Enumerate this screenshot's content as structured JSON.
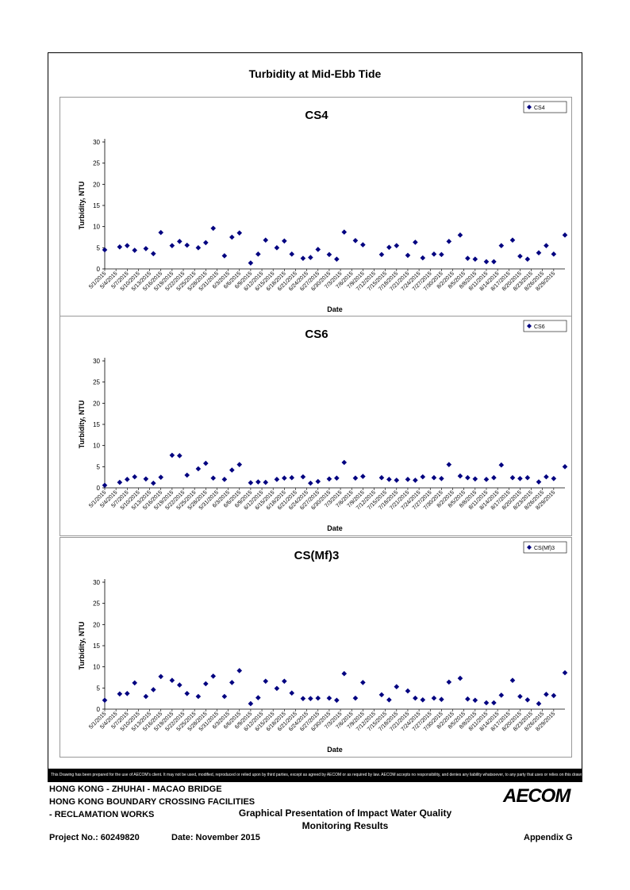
{
  "page_title": "Turbidity at Mid-Ebb Tide",
  "disclaimer": "This Drawing has been prepared for the use of AECOM's client. It may not be used, modified, reproduced or relied upon by third parties, except as agreed by AECOM or as required by law. AECOM accepts no responsibility, and denies any liability whatsoever, to any party that uses or relies on this drawing without AECOM's express written consent.",
  "footer": {
    "line1": "HONG KONG - ZHUHAI - MACAO BRIDGE",
    "line2": "HONG KONG BOUNDARY CROSSING FACILITIES",
    "line3": "- RECLAMATION WORKS",
    "logo": "AECOM",
    "center1": "Graphical Presentation of Impact Water Quality",
    "center2": "Monitoring Results",
    "project": "Project No.: 60249820",
    "date": "Date: November 2015",
    "appendix": "Appendix G"
  },
  "colors": {
    "marker": "#000080",
    "axis": "#000000",
    "frame": "#000000"
  },
  "chart_data": [
    {
      "type": "scatter",
      "title": "CS4",
      "xlabel": "Date",
      "ylabel": "Turbidity, NTU",
      "legend": "top-right",
      "series": [
        {
          "name": "CS4",
          "marker": "diamond",
          "points": [
            [
              "5/1/2015",
              4.5
            ],
            [
              "5/5/2015",
              5.2
            ],
            [
              "5/7/2015",
              5.5
            ],
            [
              "5/9/2015",
              4.4
            ],
            [
              "5/12/2015",
              4.8
            ],
            [
              "5/14/2015",
              3.6
            ],
            [
              "5/16/2015",
              8.6
            ],
            [
              "5/19/2015",
              5.5
            ],
            [
              "5/21/2015",
              6.5
            ],
            [
              "5/23/2015",
              5.6
            ],
            [
              "5/26/2015",
              5
            ],
            [
              "5/28/2015",
              6.2
            ],
            [
              "5/30/2015",
              9.6
            ],
            [
              "6/2/2015",
              3.1
            ],
            [
              "6/4/2015",
              7.5
            ],
            [
              "6/6/2015",
              8.5
            ],
            [
              "6/9/2015",
              1.4
            ],
            [
              "6/11/2015",
              3.5
            ],
            [
              "6/13/2015",
              6.8
            ],
            [
              "6/16/2015",
              5
            ],
            [
              "6/18/2015",
              6.6
            ],
            [
              "6/20/2015",
              3.5
            ],
            [
              "6/23/2015",
              2.5
            ],
            [
              "6/25/2015",
              2.7
            ],
            [
              "6/27/2015",
              4.6
            ],
            [
              "6/30/2015",
              3.4
            ],
            [
              "7/2/2015",
              2.3
            ],
            [
              "7/4/2015",
              8.7
            ],
            [
              "7/7/2015",
              6.7
            ],
            [
              "7/9/2015",
              5.7
            ],
            [
              "7/14/2015",
              3.4
            ],
            [
              "7/16/2015",
              5.1
            ],
            [
              "7/18/2015",
              5.5
            ],
            [
              "7/21/2015",
              3.2
            ],
            [
              "7/23/2015",
              6.3
            ],
            [
              "7/25/2015",
              2.6
            ],
            [
              "7/28/2015",
              3.5
            ],
            [
              "7/30/2015",
              3.4
            ],
            [
              "8/1/2015",
              6.5
            ],
            [
              "8/4/2015",
              8
            ],
            [
              "8/6/2015",
              2.5
            ],
            [
              "8/8/2015",
              2.3
            ],
            [
              "8/11/2015",
              1.7
            ],
            [
              "8/13/2015",
              1.7
            ],
            [
              "8/15/2015",
              5.5
            ],
            [
              "8/18/2015",
              6.8
            ],
            [
              "8/20/2015",
              3
            ],
            [
              "8/22/2015",
              2.3
            ],
            [
              "8/25/2015",
              3.8
            ],
            [
              "8/27/2015",
              5.5
            ],
            [
              "8/29/2015",
              3.5
            ],
            [
              "9/1/2015",
              8
            ]
          ]
        }
      ],
      "xticks": [
        "5/1/2015",
        "5/4/2015",
        "5/7/2015",
        "5/10/2015",
        "5/13/2015",
        "5/16/2015",
        "5/19/2015",
        "5/22/2015",
        "5/25/2015",
        "5/28/2015",
        "5/31/2015",
        "6/3/2015",
        "6/6/2015",
        "6/9/2015",
        "6/12/2015",
        "6/15/2015",
        "6/18/2015",
        "6/21/2015",
        "6/24/2015",
        "6/27/2015",
        "6/30/2015",
        "7/3/2015",
        "7/6/2015",
        "7/9/2015",
        "7/12/2015",
        "7/15/2015",
        "7/18/2015",
        "7/21/2015",
        "7/24/2015",
        "7/27/2015",
        "7/30/2015",
        "8/2/2015",
        "8/5/2015",
        "8/8/2015",
        "8/11/2015",
        "8/14/2015",
        "8/17/2015",
        "8/20/2015",
        "8/23/2015",
        "8/26/2015",
        "8/29/2015"
      ],
      "xlim": [
        "5/1/2015",
        "9/1/2015"
      ],
      "ylim": [
        0,
        30
      ],
      "yticks": [
        0,
        5,
        10,
        15,
        20,
        25,
        30
      ],
      "grid": false
    },
    {
      "type": "scatter",
      "title": "CS6",
      "xlabel": "Date",
      "ylabel": "Turbidity, NTU",
      "legend": "top-right",
      "series": [
        {
          "name": "CS6",
          "marker": "diamond",
          "points": [
            [
              "5/1/2015",
              0.6
            ],
            [
              "5/5/2015",
              1.3
            ],
            [
              "5/7/2015",
              2
            ],
            [
              "5/9/2015",
              2.6
            ],
            [
              "5/12/2015",
              2.1
            ],
            [
              "5/14/2015",
              1.1
            ],
            [
              "5/16/2015",
              2.5
            ],
            [
              "5/19/2015",
              7.7
            ],
            [
              "5/21/2015",
              7.6
            ],
            [
              "5/23/2015",
              3
            ],
            [
              "5/26/2015",
              4.5
            ],
            [
              "5/28/2015",
              5.8
            ],
            [
              "5/30/2015",
              2.3
            ],
            [
              "6/2/2015",
              2
            ],
            [
              "6/4/2015",
              4.2
            ],
            [
              "6/6/2015",
              5.5
            ],
            [
              "6/9/2015",
              1.2
            ],
            [
              "6/11/2015",
              1.4
            ],
            [
              "6/13/2015",
              1.3
            ],
            [
              "6/16/2015",
              2
            ],
            [
              "6/18/2015",
              2.3
            ],
            [
              "6/20/2015",
              2.4
            ],
            [
              "6/23/2015",
              2.6
            ],
            [
              "6/25/2015",
              1.1
            ],
            [
              "6/27/2015",
              1.5
            ],
            [
              "6/30/2015",
              2.1
            ],
            [
              "7/2/2015",
              2.3
            ],
            [
              "7/4/2015",
              6
            ],
            [
              "7/7/2015",
              2.3
            ],
            [
              "7/9/2015",
              2.7
            ],
            [
              "7/14/2015",
              2.4
            ],
            [
              "7/16/2015",
              2
            ],
            [
              "7/18/2015",
              1.8
            ],
            [
              "7/21/2015",
              2
            ],
            [
              "7/23/2015",
              1.8
            ],
            [
              "7/25/2015",
              2.6
            ],
            [
              "7/28/2015",
              2.4
            ],
            [
              "7/30/2015",
              2.2
            ],
            [
              "8/1/2015",
              5.5
            ],
            [
              "8/4/2015",
              2.8
            ],
            [
              "8/6/2015",
              2.4
            ],
            [
              "8/8/2015",
              2.1
            ],
            [
              "8/11/2015",
              2
            ],
            [
              "8/13/2015",
              2.4
            ],
            [
              "8/15/2015",
              5.4
            ],
            [
              "8/18/2015",
              2.4
            ],
            [
              "8/20/2015",
              2.2
            ],
            [
              "8/22/2015",
              2.4
            ],
            [
              "8/25/2015",
              1.4
            ],
            [
              "8/27/2015",
              2.6
            ],
            [
              "8/29/2015",
              2.2
            ],
            [
              "9/1/2015",
              5
            ]
          ]
        }
      ],
      "xticks": [
        "5/1/2015",
        "5/4/2015",
        "5/7/2015",
        "5/10/2015",
        "5/13/2015",
        "5/16/2015",
        "5/19/2015",
        "5/22/2015",
        "5/25/2015",
        "5/28/2015",
        "5/31/2015",
        "6/3/2015",
        "6/6/2015",
        "6/9/2015",
        "6/12/2015",
        "6/15/2015",
        "6/18/2015",
        "6/21/2015",
        "6/24/2015",
        "6/27/2015",
        "6/30/2015",
        "7/3/2015",
        "7/6/2015",
        "7/9/2015",
        "7/12/2015",
        "7/15/2015",
        "7/18/2015",
        "7/21/2015",
        "7/24/2015",
        "7/27/2015",
        "7/30/2015",
        "8/2/2015",
        "8/5/2015",
        "8/8/2015",
        "8/11/2015",
        "8/14/2015",
        "8/17/2015",
        "8/20/2015",
        "8/23/2015",
        "8/26/2015",
        "8/29/2015"
      ],
      "xlim": [
        "5/1/2015",
        "9/1/2015"
      ],
      "ylim": [
        0,
        30
      ],
      "yticks": [
        0,
        5,
        10,
        15,
        20,
        25,
        30
      ],
      "grid": false
    },
    {
      "type": "scatter",
      "title": "CS(Mf)3",
      "xlabel": "Date",
      "ylabel": "Turbidity, NTU",
      "legend": "top-right",
      "series": [
        {
          "name": "CS(Mf)3",
          "marker": "diamond",
          "points": [
            [
              "5/1/2015",
              2.1
            ],
            [
              "5/5/2015",
              3.6
            ],
            [
              "5/7/2015",
              3.7
            ],
            [
              "5/9/2015",
              6.2
            ],
            [
              "5/12/2015",
              3
            ],
            [
              "5/14/2015",
              4.6
            ],
            [
              "5/16/2015",
              7.7
            ],
            [
              "5/19/2015",
              6.8
            ],
            [
              "5/21/2015",
              5.7
            ],
            [
              "5/23/2015",
              3.7
            ],
            [
              "5/26/2015",
              3
            ],
            [
              "5/28/2015",
              6
            ],
            [
              "5/30/2015",
              7.8
            ],
            [
              "6/2/2015",
              3
            ],
            [
              "6/4/2015",
              6.3
            ],
            [
              "6/6/2015",
              9.1
            ],
            [
              "6/9/2015",
              1.3
            ],
            [
              "6/11/2015",
              2.7
            ],
            [
              "6/13/2015",
              6.6
            ],
            [
              "6/16/2015",
              4.9
            ],
            [
              "6/18/2015",
              6.6
            ],
            [
              "6/20/2015",
              3.8
            ],
            [
              "6/23/2015",
              2.5
            ],
            [
              "6/25/2015",
              2.5
            ],
            [
              "6/27/2015",
              2.6
            ],
            [
              "6/30/2015",
              2.6
            ],
            [
              "7/2/2015",
              2.1
            ],
            [
              "7/4/2015",
              8.4
            ],
            [
              "7/7/2015",
              2.6
            ],
            [
              "7/9/2015",
              6.3
            ],
            [
              "7/14/2015",
              3.4
            ],
            [
              "7/16/2015",
              2.2
            ],
            [
              "7/18/2015",
              5.3
            ],
            [
              "7/21/2015",
              4.3
            ],
            [
              "7/23/2015",
              2.6
            ],
            [
              "7/25/2015",
              2.2
            ],
            [
              "7/28/2015",
              2.6
            ],
            [
              "7/30/2015",
              2.3
            ],
            [
              "8/1/2015",
              6.4
            ],
            [
              "8/4/2015",
              7.3
            ],
            [
              "8/6/2015",
              2.4
            ],
            [
              "8/8/2015",
              2.1
            ],
            [
              "8/11/2015",
              1.5
            ],
            [
              "8/13/2015",
              1.5
            ],
            [
              "8/15/2015",
              3.3
            ],
            [
              "8/18/2015",
              6.8
            ],
            [
              "8/20/2015",
              3
            ],
            [
              "8/22/2015",
              2.2
            ],
            [
              "8/25/2015",
              1.3
            ],
            [
              "8/27/2015",
              3.5
            ],
            [
              "8/29/2015",
              3.2
            ],
            [
              "9/1/2015",
              8.6
            ]
          ]
        }
      ],
      "xticks": [
        "5/1/2015",
        "5/4/2015",
        "5/7/2015",
        "5/10/2015",
        "5/13/2015",
        "5/16/2015",
        "5/19/2015",
        "5/22/2015",
        "5/25/2015",
        "5/28/2015",
        "5/31/2015",
        "6/3/2015",
        "6/6/2015",
        "6/9/2015",
        "6/12/2015",
        "6/15/2015",
        "6/18/2015",
        "6/21/2015",
        "6/24/2015",
        "6/27/2015",
        "6/30/2015",
        "7/3/2015",
        "7/6/2015",
        "7/9/2015",
        "7/12/2015",
        "7/15/2015",
        "7/18/2015",
        "7/21/2015",
        "7/24/2015",
        "7/27/2015",
        "7/30/2015",
        "8/2/2015",
        "8/5/2015",
        "8/8/2015",
        "8/11/2015",
        "8/14/2015",
        "8/17/2015",
        "8/20/2015",
        "8/23/2015",
        "8/26/2015",
        "8/29/2015"
      ],
      "xlim": [
        "5/1/2015",
        "9/1/2015"
      ],
      "ylim": [
        0,
        30
      ],
      "yticks": [
        0,
        5,
        10,
        15,
        20,
        25,
        30
      ],
      "grid": false
    }
  ]
}
